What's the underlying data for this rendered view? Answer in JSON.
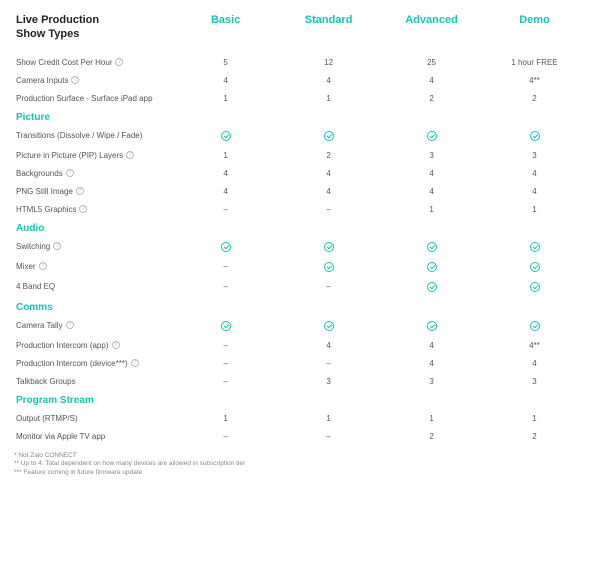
{
  "colors": {
    "accent": "#19c3b8",
    "text": "#555555",
    "heading": "#222222",
    "bg": "#ffffff"
  },
  "header": {
    "title_line1": "Live Production",
    "title_line2": "Show Types",
    "plans": [
      "Basic",
      "Standard",
      "Advanced",
      "Demo"
    ]
  },
  "sections": [
    {
      "title": null,
      "rows": [
        {
          "label": "Show Credit Cost Per Hour",
          "info": true,
          "values": [
            "5",
            "12",
            "25",
            "1 hour FREE"
          ]
        },
        {
          "label": "Camera Inputs",
          "info": true,
          "values": [
            "4",
            "4",
            "4",
            "4**"
          ]
        },
        {
          "label": "Production Surface - Surface iPad app",
          "info": false,
          "values": [
            "1",
            "1",
            "2",
            "2"
          ]
        }
      ]
    },
    {
      "title": "Picture",
      "rows": [
        {
          "label": "Transitions (Dissolve / Wipe / Fade)",
          "info": false,
          "values": [
            "check",
            "check",
            "check",
            "check"
          ]
        },
        {
          "label": "Picture in Picture (PIP) Layers",
          "info": true,
          "values": [
            "1",
            "2",
            "3",
            "3"
          ]
        },
        {
          "label": "Backgrounds",
          "info": true,
          "values": [
            "4",
            "4",
            "4",
            "4"
          ]
        },
        {
          "label": "PNG Still Image",
          "info": true,
          "values": [
            "4",
            "4",
            "4",
            "4"
          ]
        },
        {
          "label": "HTML5 Graphics",
          "info": true,
          "values": [
            "–",
            "–",
            "1",
            "1"
          ]
        }
      ]
    },
    {
      "title": "Audio",
      "rows": [
        {
          "label": "Switching",
          "info": true,
          "values": [
            "check",
            "check",
            "check",
            "check"
          ]
        },
        {
          "label": "Mixer",
          "info": true,
          "values": [
            "–",
            "check",
            "check",
            "check"
          ]
        },
        {
          "label": "4 Band EQ",
          "info": false,
          "values": [
            "–",
            "–",
            "check",
            "check"
          ]
        }
      ]
    },
    {
      "title": "Comms",
      "rows": [
        {
          "label": "Camera Tally",
          "info": true,
          "values": [
            "check",
            "check",
            "check",
            "check"
          ]
        },
        {
          "label": "Production Intercom (app)",
          "info": true,
          "values": [
            "–",
            "4",
            "4",
            "4**"
          ]
        },
        {
          "label": "Production Intercom (device***)",
          "info": true,
          "values": [
            "–",
            "–",
            "4",
            "4"
          ]
        },
        {
          "label": "Talkback Groups",
          "info": false,
          "values": [
            "–",
            "3",
            "3",
            "3"
          ]
        }
      ]
    },
    {
      "title": "Program Stream",
      "rows": [
        {
          "label": "Output (RTMP/S)",
          "info": false,
          "values": [
            "1",
            "1",
            "1",
            "1"
          ]
        },
        {
          "label": "Monitor via Apple TV app",
          "info": false,
          "values": [
            "–",
            "–",
            "2",
            "2"
          ]
        }
      ]
    }
  ],
  "footnotes": [
    "* Not Zalo CONNECT",
    "** Up to 4. Total dependent on how many devices are allowed in subscription tier",
    "*** Feature coming in future firmware update"
  ]
}
